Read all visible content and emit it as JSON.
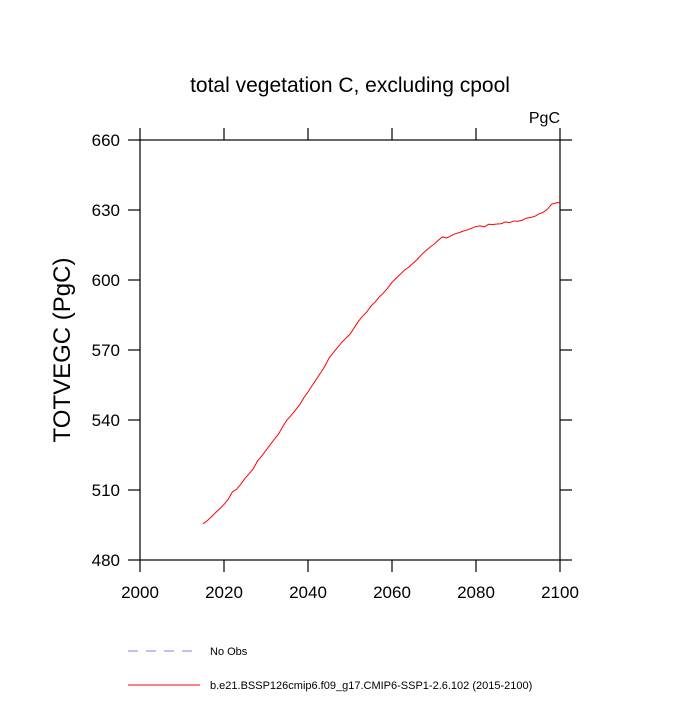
{
  "chart_data": {
    "type": "line",
    "title": "total vegetation C, excluding cpool",
    "units": "PgC",
    "ylabel": "TOTVEGC  (PgC)",
    "x": [
      2015,
      2016,
      2017,
      2018,
      2019,
      2020,
      2021,
      2022,
      2023,
      2024,
      2025,
      2026,
      2027,
      2028,
      2029,
      2030,
      2031,
      2032,
      2033,
      2034,
      2035,
      2036,
      2037,
      2038,
      2039,
      2040,
      2041,
      2042,
      2043,
      2044,
      2045,
      2046,
      2047,
      2048,
      2049,
      2050,
      2051,
      2052,
      2053,
      2054,
      2055,
      2056,
      2057,
      2058,
      2059,
      2060,
      2061,
      2062,
      2063,
      2064,
      2065,
      2066,
      2067,
      2068,
      2069,
      2070,
      2071,
      2072,
      2073,
      2074,
      2075,
      2076,
      2077,
      2078,
      2079,
      2080,
      2081,
      2082,
      2083,
      2084,
      2085,
      2086,
      2087,
      2088,
      2089,
      2090,
      2091,
      2092,
      2093,
      2094,
      2095,
      2096,
      2097,
      2098,
      2099,
      2100
    ],
    "series": [
      {
        "name": "b.e21.BSSP126cmip6.f09_g17.CMIP6-SSP1-2.6.102 (2015-2100)",
        "color": "#ff0000",
        "values": [
          495.5,
          496.8,
          498.5,
          500.3,
          502.0,
          503.8,
          506.0,
          509.2,
          510.3,
          512.5,
          515.0,
          517.0,
          519.2,
          522.5,
          524.6,
          527.0,
          529.4,
          531.8,
          534.0,
          537.2,
          540.0,
          542.0,
          544.2,
          546.5,
          549.5,
          552.0,
          554.8,
          557.5,
          560.2,
          563.0,
          566.5,
          568.8,
          571.0,
          573.2,
          575.0,
          576.8,
          579.5,
          582.3,
          584.5,
          586.3,
          588.8,
          590.6,
          592.8,
          594.5,
          596.6,
          599.0,
          600.8,
          602.5,
          604.3,
          605.5,
          607.2,
          608.8,
          610.8,
          612.5,
          614.0,
          615.3,
          617.0,
          618.5,
          618.0,
          618.9,
          619.8,
          620.3,
          621.0,
          621.5,
          622.2,
          622.9,
          623.2,
          622.8,
          623.9,
          623.8,
          624.0,
          624.1,
          624.9,
          624.6,
          625.3,
          625.2,
          625.6,
          626.5,
          626.8,
          627.3,
          628.3,
          629.0,
          630.3,
          632.5,
          633.0,
          633.3
        ]
      }
    ],
    "obs_legend": {
      "name": "No Obs",
      "color": "#8080ff",
      "dashed": true
    },
    "xlim": [
      2000,
      2100
    ],
    "xticks": [
      2000,
      2020,
      2040,
      2060,
      2080,
      2100
    ],
    "ylim": [
      480,
      660
    ],
    "yticks": [
      480,
      510,
      540,
      570,
      600,
      630,
      660
    ]
  }
}
